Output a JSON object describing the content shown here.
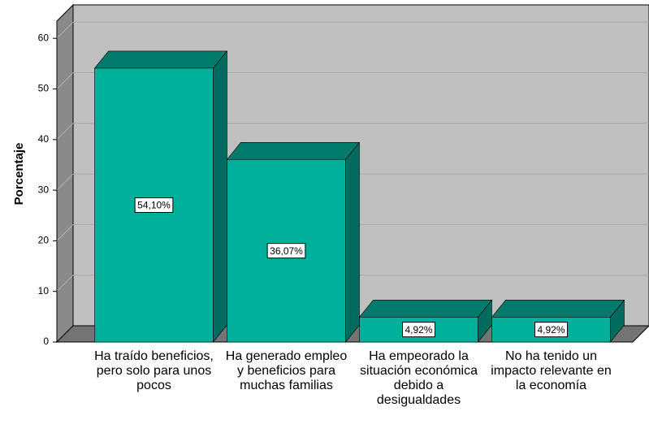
{
  "chart_data": {
    "type": "bar3d",
    "y_label": "Porcentaje",
    "categories": [
      "Ha traído beneficios, pero solo para unos pocos",
      "Ha generado empleo y beneficios para muchas familias",
      "Ha empeorado la situación económica debido a desigualdades",
      "No ha tenido un impacto relevante en la economía"
    ],
    "values": [
      54.1,
      36.07,
      4.92,
      4.92
    ],
    "value_labels": [
      "54,10%",
      "36,07%",
      "4,92%",
      "4,92%"
    ],
    "color": "#00b09b",
    "ylim": [
      0,
      63.4
    ],
    "yticks": [
      0,
      10,
      20,
      30,
      40,
      50,
      60
    ],
    "grid": true
  }
}
